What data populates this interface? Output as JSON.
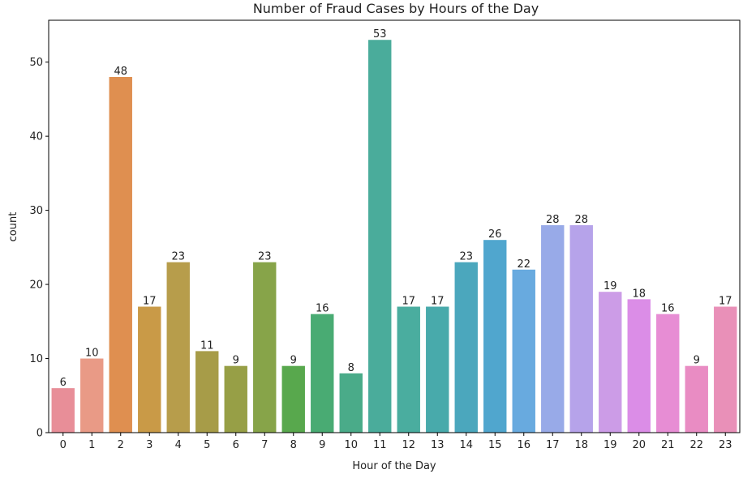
{
  "chart_data": {
    "type": "bar",
    "title": "Number of Fraud Cases by Hours of the Day",
    "xlabel": "Hour of the Day",
    "ylabel": "count",
    "categories": [
      "0",
      "1",
      "2",
      "3",
      "4",
      "5",
      "6",
      "7",
      "8",
      "9",
      "10",
      "11",
      "12",
      "13",
      "14",
      "15",
      "16",
      "17",
      "18",
      "19",
      "20",
      "21",
      "22",
      "23"
    ],
    "values": [
      6,
      10,
      48,
      17,
      23,
      11,
      9,
      23,
      9,
      16,
      8,
      53,
      17,
      17,
      23,
      26,
      22,
      28,
      28,
      19,
      18,
      16,
      9,
      17
    ],
    "data_labels": [
      "6",
      "10",
      "48",
      "17",
      "23",
      "11",
      "9",
      "23",
      "9",
      "16",
      "8",
      "53",
      "17",
      "17",
      "23",
      "26",
      "22",
      "28",
      "28",
      "19",
      "18",
      "16",
      "9",
      "17"
    ],
    "ylim": [
      0,
      55.65
    ],
    "yticks": [
      0,
      10,
      20,
      30,
      40,
      50
    ],
    "ytick_labels": [
      "0",
      "10",
      "20",
      "30",
      "40",
      "50"
    ],
    "grid": false,
    "legend": "none",
    "colors": [
      "#e88e98",
      "#e99a86",
      "#df8f50",
      "#c99a47",
      "#b79d4b",
      "#a79c48",
      "#979f46",
      "#87a449",
      "#58a84d",
      "#49ab73",
      "#4aab89",
      "#4aac9b",
      "#4aad9f",
      "#48aaab",
      "#4ba7bd",
      "#50a6ce",
      "#68aadf",
      "#98aae8",
      "#b6a3ea",
      "#cc9ce7",
      "#db8de7",
      "#e78dd4",
      "#e98cc3",
      "#e990b8"
    ]
  }
}
